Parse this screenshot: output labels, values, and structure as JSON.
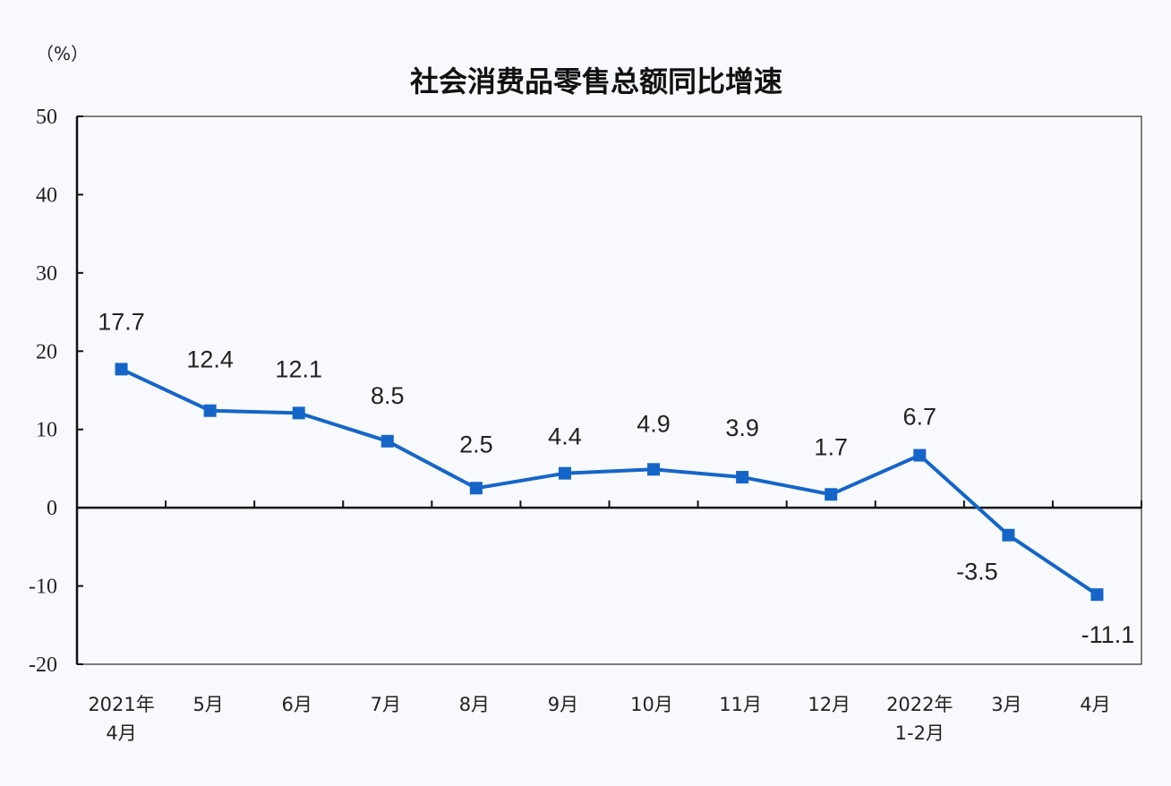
{
  "chart_data": {
    "type": "line",
    "title": "社会消费品零售总额同比增速",
    "ylabel": "（%）",
    "xlabel": "",
    "ylim": [
      -20,
      50
    ],
    "yticks": [
      50,
      40,
      30,
      20,
      10,
      0,
      -10,
      -20
    ],
    "grid": false,
    "categories": [
      [
        "2021年",
        "4月"
      ],
      [
        "5月"
      ],
      [
        "6月"
      ],
      [
        "7月"
      ],
      [
        "8月"
      ],
      [
        "9月"
      ],
      [
        "10月"
      ],
      [
        "11月"
      ],
      [
        "12月"
      ],
      [
        "2022年",
        "1-2月"
      ],
      [
        "3月"
      ],
      [
        "4月"
      ]
    ],
    "series": [
      {
        "name": "社会消费品零售总额同比增速",
        "color": "#1565c8",
        "values": [
          17.7,
          12.4,
          12.1,
          8.5,
          2.5,
          4.4,
          4.9,
          3.9,
          1.7,
          6.7,
          -3.5,
          -11.1
        ],
        "labels": [
          "17.7",
          "12.4",
          "12.1",
          "8.5",
          "2.5",
          "4.4",
          "4.9",
          "3.9",
          "1.7",
          "6.7",
          "-3.5",
          "-11.1"
        ]
      }
    ]
  }
}
